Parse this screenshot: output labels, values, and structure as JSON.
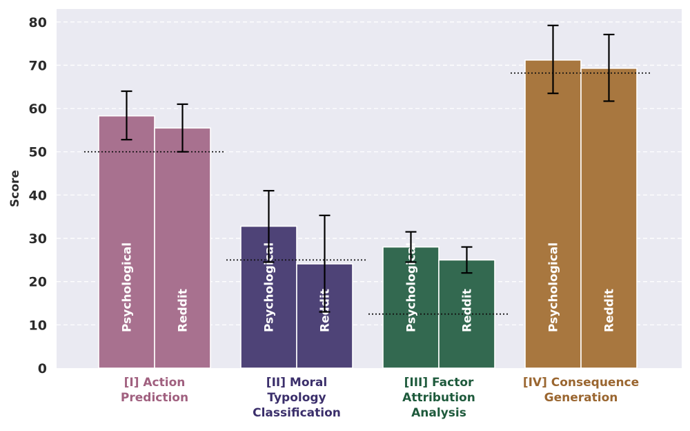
{
  "chart_data": {
    "type": "bar",
    "ylabel": "Score",
    "ylim": [
      0,
      83
    ],
    "yticks": [
      0,
      10,
      20,
      30,
      40,
      50,
      60,
      70,
      80
    ],
    "grid": true,
    "series_labels": [
      "Psychological",
      "Reddit"
    ],
    "groups": [
      {
        "label_lines": [
          "[I] Action",
          "Prediction"
        ],
        "color": "#a8718f",
        "label_color": "#a0607f",
        "baseline": 50,
        "bars": [
          {
            "series": "Psychological",
            "value": 58.3,
            "err_low": 52.8,
            "err_high": 64.0
          },
          {
            "series": "Reddit",
            "value": 55.5,
            "err_low": 50.0,
            "err_high": 61.0
          }
        ]
      },
      {
        "label_lines": [
          "[II] Moral",
          "Typology",
          "Classification"
        ],
        "color": "#4e4377",
        "label_color": "#3b2f6b",
        "baseline": 25,
        "bars": [
          {
            "series": "Psychological",
            "value": 32.8,
            "err_low": 24.5,
            "err_high": 41.0
          },
          {
            "series": "Reddit",
            "value": 24.1,
            "err_low": 13.0,
            "err_high": 35.3
          }
        ]
      },
      {
        "label_lines": [
          "[III] Factor",
          "Attribution",
          "Analysis"
        ],
        "color": "#336950",
        "label_color": "#1e5a3c",
        "baseline": 12.5,
        "bars": [
          {
            "series": "Psychological",
            "value": 28.0,
            "err_low": 24.5,
            "err_high": 31.5
          },
          {
            "series": "Reddit",
            "value": 25.0,
            "err_low": 22.0,
            "err_high": 28.0
          }
        ]
      },
      {
        "label_lines": [
          "[IV] Consequence",
          "Generation"
        ],
        "color": "#a8773f",
        "label_color": "#9a6630",
        "baseline": 68.2,
        "bars": [
          {
            "series": "Psychological",
            "value": 71.2,
            "err_low": 63.5,
            "err_high": 79.2
          },
          {
            "series": "Reddit",
            "value": 69.3,
            "err_low": 61.7,
            "err_high": 77.1
          }
        ]
      }
    ]
  }
}
